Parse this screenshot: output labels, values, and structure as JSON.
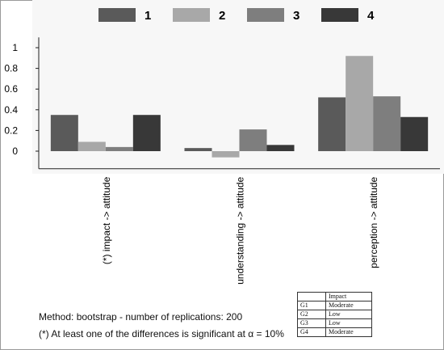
{
  "chart_data": {
    "type": "bar",
    "categories": [
      "(*) impact -> attitude",
      "understanding -> attitude",
      "perception -> attitude"
    ],
    "series": [
      {
        "name": "1",
        "values": [
          0.35,
          0.03,
          0.52
        ],
        "color": "#5a5a5a"
      },
      {
        "name": "2",
        "values": [
          0.09,
          -0.06,
          0.92
        ],
        "color": "#a8a8a8"
      },
      {
        "name": "3",
        "values": [
          0.04,
          0.21,
          0.53
        ],
        "color": "#7e7e7e"
      },
      {
        "name": "4",
        "values": [
          0.35,
          0.06,
          0.33
        ],
        "color": "#383838"
      }
    ],
    "yticks": [
      "0",
      "0.2",
      "0.4",
      "0.6",
      "0.8",
      "1"
    ],
    "ylim": [
      -0.17,
      1.1
    ],
    "legend_position": "top",
    "grid": false
  },
  "notes": {
    "line1": "Method: bootstrap - number of replications: 200",
    "line2": "(*) At least one of the differences is significant at α = 10%"
  },
  "group_table": {
    "header": [
      "",
      "Impact"
    ],
    "rows": [
      [
        "G1",
        "Moderate"
      ],
      [
        "G2",
        "Low"
      ],
      [
        "G3",
        "Low"
      ],
      [
        "G4",
        "Moderate"
      ]
    ]
  }
}
